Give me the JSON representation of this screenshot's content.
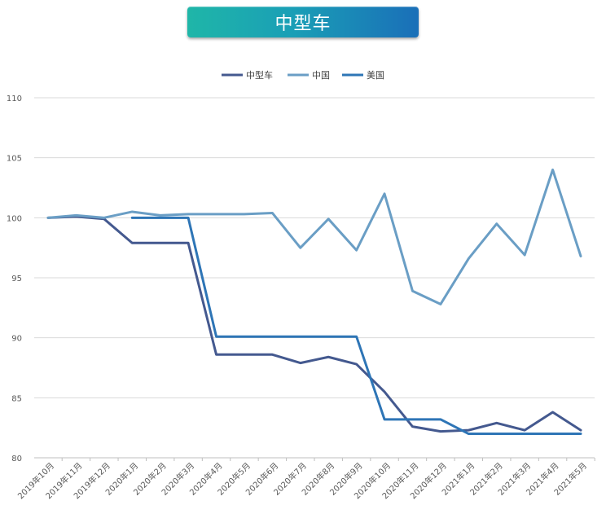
{
  "chart_data": {
    "type": "line",
    "title": "中型车",
    "xlabel": "",
    "ylabel": "",
    "ylim": [
      80,
      110
    ],
    "yticks": [
      80,
      85,
      90,
      95,
      100,
      105,
      110
    ],
    "grid": true,
    "legend_position": "top-center",
    "categories": [
      "2019年10月",
      "2019年11月",
      "2019年12月",
      "2020年1月",
      "2020年2月",
      "2020年3月",
      "2020年4月",
      "2020年5月",
      "2020年6月",
      "2020年7月",
      "2020年8月",
      "2020年9月",
      "2020年10月",
      "2020年11月",
      "2020年12月",
      "2021年1月",
      "2021年2月",
      "2021年3月",
      "2021年4月",
      "2021年5月"
    ],
    "series": [
      {
        "name": "中型车",
        "color": "#44598f",
        "values": [
          100,
          100.1,
          99.9,
          97.9,
          97.9,
          97.9,
          88.6,
          88.6,
          88.6,
          87.9,
          88.4,
          87.8,
          85.5,
          82.6,
          82.2,
          82.3,
          82.9,
          82.3,
          83.8,
          82.3
        ]
      },
      {
        "name": "中国",
        "color": "#6a9ec5",
        "values": [
          100,
          100.2,
          100,
          100.5,
          100.2,
          100.3,
          100.3,
          100.3,
          100.4,
          97.5,
          99.9,
          97.3,
          102,
          93.9,
          92.8,
          96.6,
          99.5,
          96.9,
          104,
          96.8
        ]
      },
      {
        "name": "美国",
        "color": "#2e75b6",
        "values": [
          null,
          null,
          null,
          100,
          100,
          100,
          90.1,
          90.1,
          90.1,
          90.1,
          90.1,
          90.1,
          83.2,
          83.2,
          83.2,
          82,
          82,
          82,
          82,
          82
        ]
      }
    ]
  }
}
